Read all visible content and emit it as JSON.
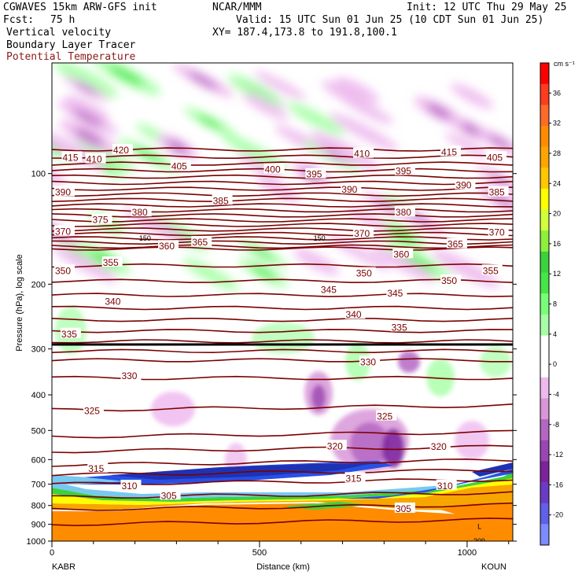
{
  "header": {
    "model": "CGWAVES 15km ARW-GFS init",
    "org": "NCAR/MMM",
    "init": "Init: 12 UTC Thu 29 May 25",
    "fcst_label": "Fcst:",
    "fcst_value": "75 h",
    "valid": "Valid: 15 UTC Sun 01 Jun 25 (10 CDT Sun 01 Jun 25)",
    "field1": "Vertical velocity",
    "xy": "XY= 187.4,173.8 to 191.8,100.1",
    "field2": "Boundary Layer Tracer",
    "field3": "Potential Temperature",
    "field3_color": "#8b1a1a"
  },
  "chart_data": {
    "type": "heatmap",
    "xlabel": "Distance (km)",
    "ylabel": "Pressure (hPa), log scale",
    "x_ticks": [
      0,
      500,
      1000
    ],
    "xlim": [
      0,
      1110
    ],
    "y_ticks": [
      100,
      200,
      300,
      400,
      500,
      600,
      700,
      800,
      900,
      1000
    ],
    "ylim": [
      1000,
      50
    ],
    "y_scale": "log",
    "left_station": "KABR",
    "right_station": "KOUN",
    "colorbar": {
      "units": "cm s⁻¹",
      "labels": [
        36,
        32,
        28,
        24,
        20,
        16,
        12,
        8,
        4,
        0,
        -4,
        -8,
        -12,
        -16,
        -20
      ],
      "colors": [
        "#ff0000",
        "#ff3c1e",
        "#ff6a28",
        "#ff8c00",
        "#ffa500",
        "#ffc800",
        "#ffff00",
        "#d2ff3c",
        "#8cf03c",
        "#3cd23c",
        "#46e646",
        "#78ff78",
        "#a6ffa6",
        "#ffffff",
        "#ffffff",
        "#eebaee",
        "#d896d8",
        "#b466c2",
        "#9a46b2",
        "#7c229c",
        "#6a3cc4",
        "#6060e8",
        "#7c8cff"
      ]
    },
    "theta_labels": [
      {
        "v": "420",
        "x": 140,
        "p": 86
      },
      {
        "v": "415",
        "x": 18,
        "p": 90
      },
      {
        "v": "410",
        "x": 75,
        "p": 91
      },
      {
        "v": "405",
        "x": 280,
        "p": 95
      },
      {
        "v": "400",
        "x": 505,
        "p": 97
      },
      {
        "v": "410",
        "x": 720,
        "p": 88
      },
      {
        "v": "395",
        "x": 605,
        "p": 100
      },
      {
        "v": "390",
        "x": 690,
        "p": 110
      },
      {
        "v": "395",
        "x": 820,
        "p": 98
      },
      {
        "v": "415",
        "x": 930,
        "p": 87
      },
      {
        "v": "405",
        "x": 1040,
        "p": 90
      },
      {
        "v": "390",
        "x": 965,
        "p": 107
      },
      {
        "v": "385",
        "x": 1045,
        "p": 112
      },
      {
        "v": "390",
        "x": 0,
        "p": 112
      },
      {
        "v": "385",
        "x": 380,
        "p": 118
      },
      {
        "v": "380",
        "x": 185,
        "p": 127
      },
      {
        "v": "380",
        "x": 820,
        "p": 127
      },
      {
        "v": "375",
        "x": 90,
        "p": 133
      },
      {
        "v": "370",
        "x": 0,
        "p": 143
      },
      {
        "v": "370",
        "x": 720,
        "p": 145
      },
      {
        "v": "370",
        "x": 1045,
        "p": 144
      },
      {
        "v": "360",
        "x": 250,
        "p": 157
      },
      {
        "v": "365",
        "x": 330,
        "p": 153
      },
      {
        "v": "360",
        "x": 815,
        "p": 165
      },
      {
        "v": "365",
        "x": 945,
        "p": 155
      },
      {
        "v": "350",
        "x": 0,
        "p": 183
      },
      {
        "v": "355",
        "x": 115,
        "p": 174
      },
      {
        "v": "350",
        "x": 725,
        "p": 186
      },
      {
        "v": "350",
        "x": 930,
        "p": 195
      },
      {
        "v": "355",
        "x": 1030,
        "p": 183
      },
      {
        "v": "345",
        "x": 640,
        "p": 206
      },
      {
        "v": "345",
        "x": 800,
        "p": 211
      },
      {
        "v": "340",
        "x": 120,
        "p": 222
      },
      {
        "v": "340",
        "x": 700,
        "p": 241
      },
      {
        "v": "335",
        "x": 15,
        "p": 272
      },
      {
        "v": "335",
        "x": 810,
        "p": 261
      },
      {
        "v": "330",
        "x": 735,
        "p": 324
      },
      {
        "v": "330",
        "x": 160,
        "p": 354
      },
      {
        "v": "325",
        "x": 70,
        "p": 440
      },
      {
        "v": "325",
        "x": 775,
        "p": 456
      },
      {
        "v": "320",
        "x": 655,
        "p": 549
      },
      {
        "v": "320",
        "x": 905,
        "p": 551
      },
      {
        "v": "315",
        "x": 80,
        "p": 632
      },
      {
        "v": "315",
        "x": 700,
        "p": 672
      },
      {
        "v": "310",
        "x": 160,
        "p": 705
      },
      {
        "v": "305",
        "x": 255,
        "p": 749
      },
      {
        "v": "310",
        "x": 920,
        "p": 704
      },
      {
        "v": "305",
        "x": 820,
        "p": 813
      }
    ],
    "small_labels": [
      {
        "v": "150",
        "x": 210,
        "p": 150
      },
      {
        "v": "150",
        "x": 630,
        "p": 150
      },
      {
        "v": "L",
        "x": 1025,
        "p": 912
      },
      {
        "v": "209",
        "x": 1015,
        "p": 1000
      }
    ]
  }
}
